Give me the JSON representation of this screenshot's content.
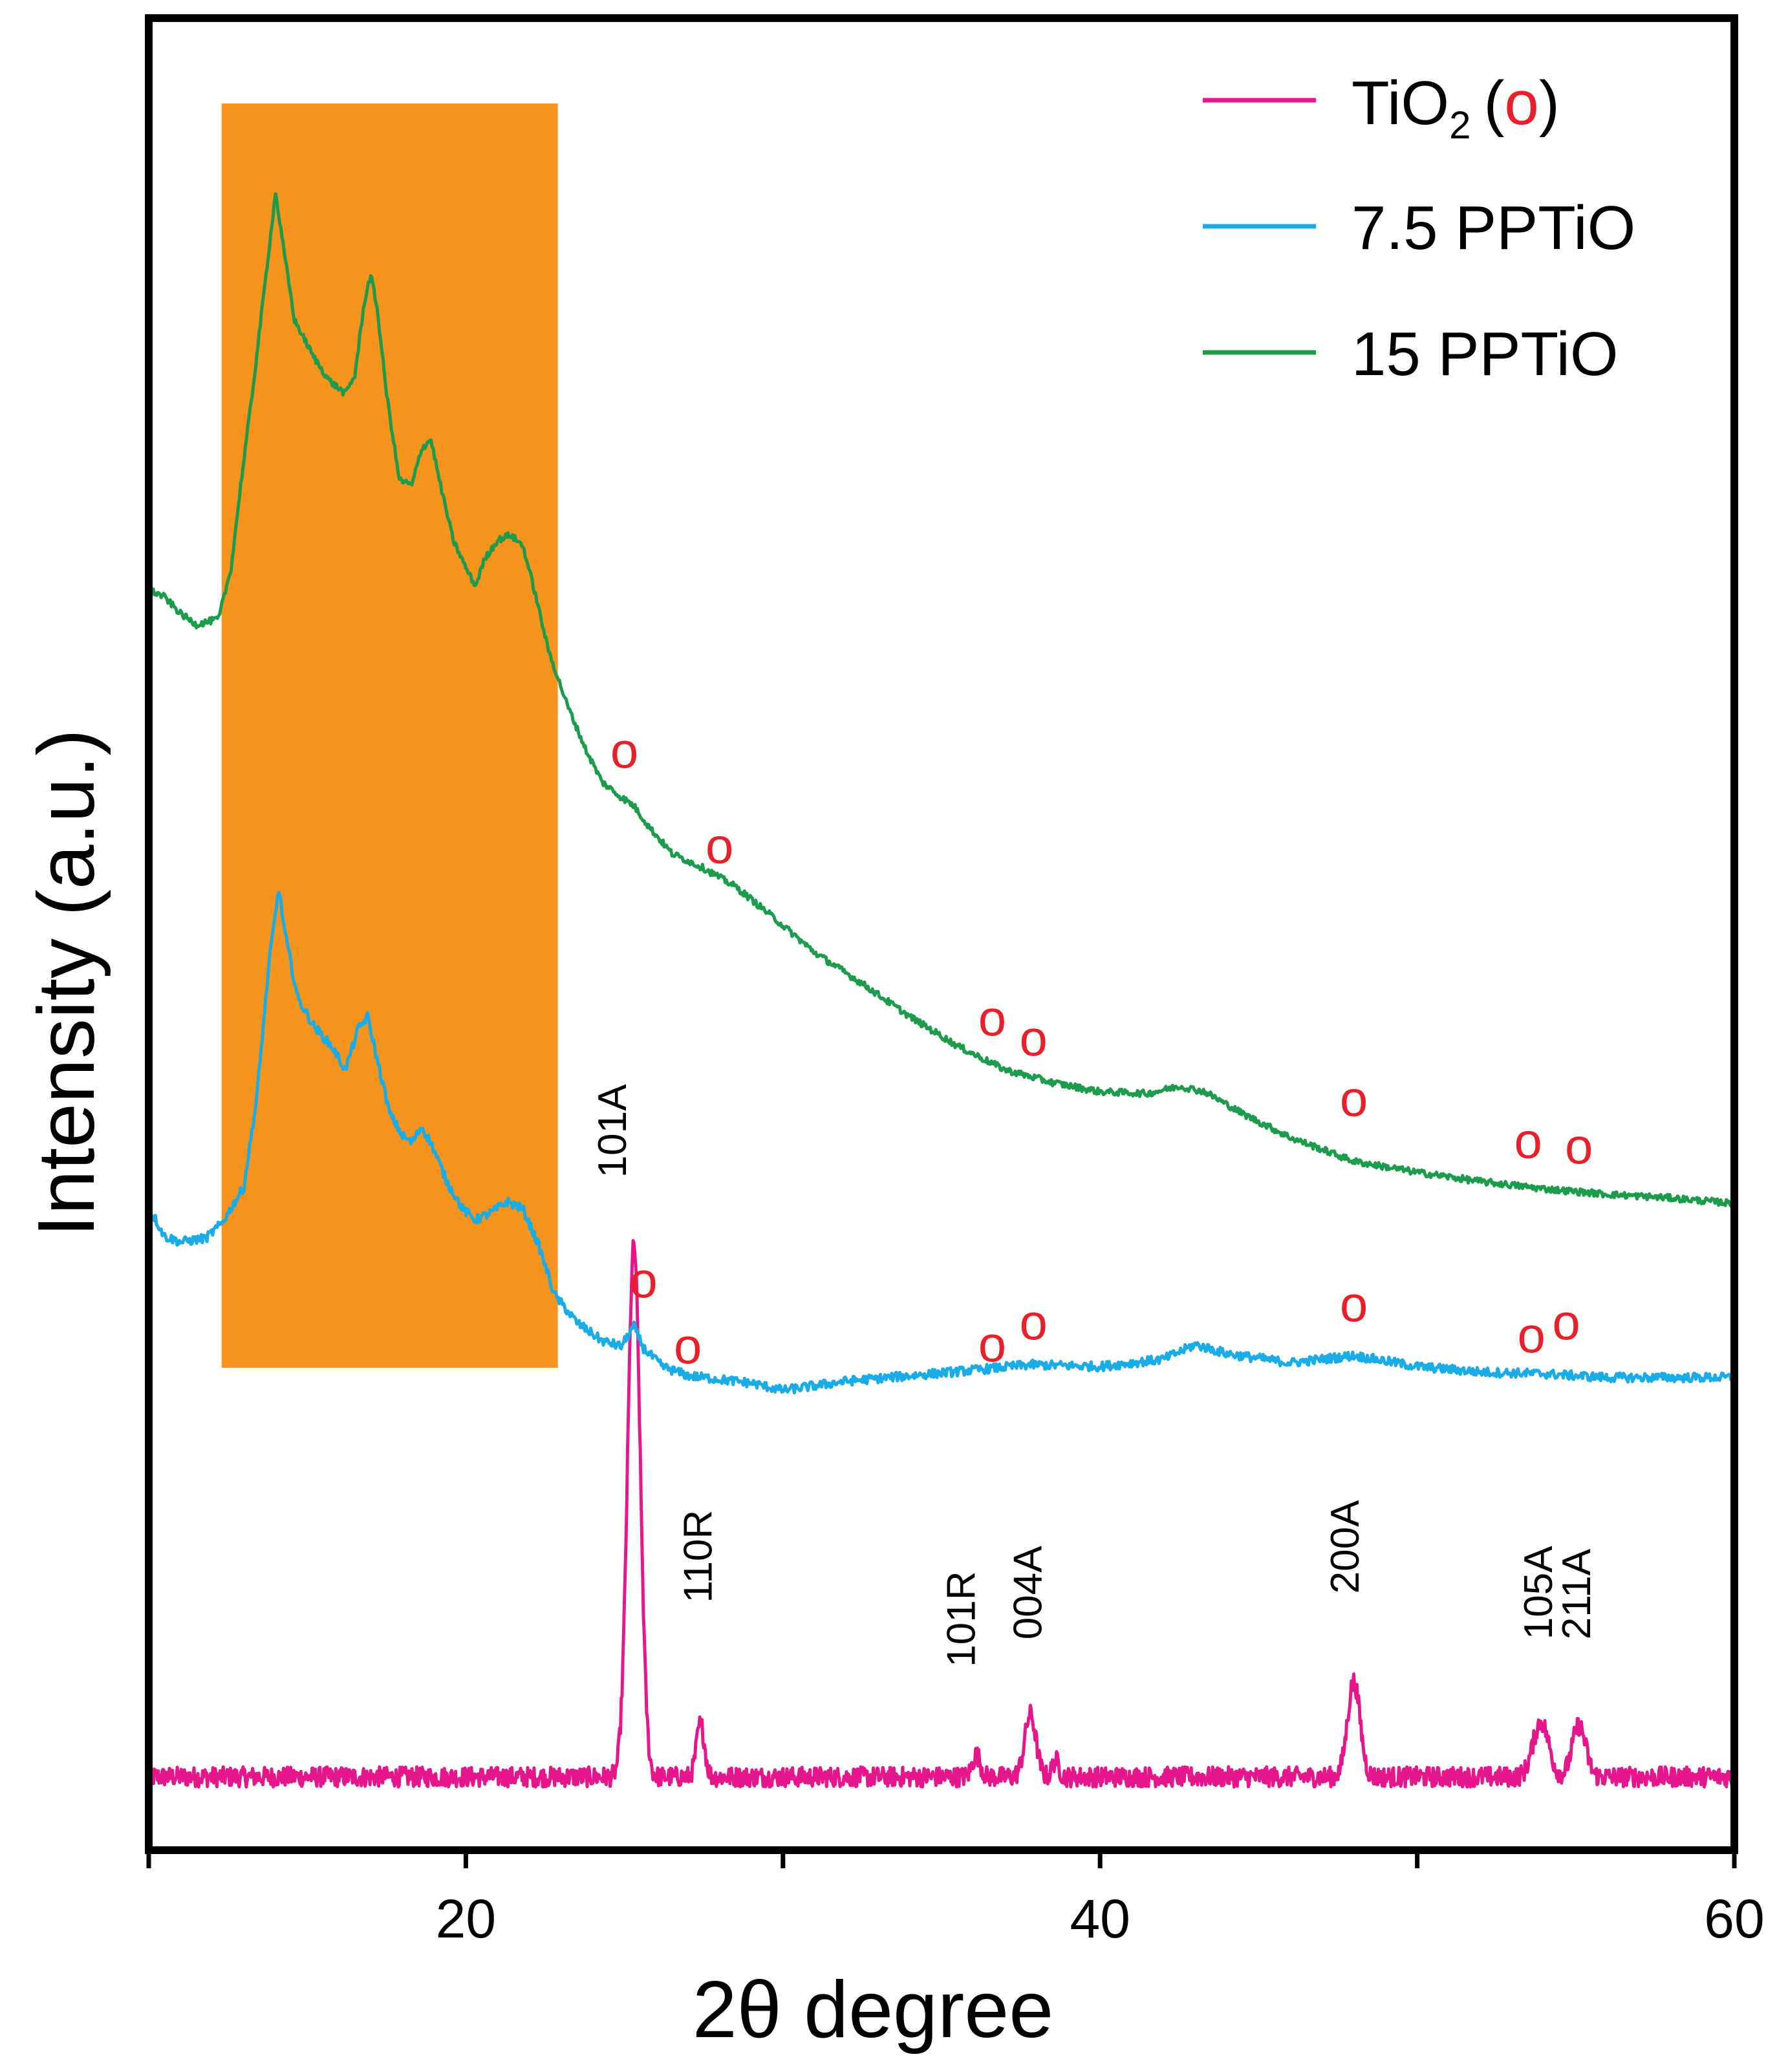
{
  "chart_data": {
    "type": "line",
    "title": "",
    "xlabel": "2θ degree",
    "ylabel": "Intensity (a.u.)",
    "xlim": [
      10,
      60
    ],
    "ylim": [
      0,
      100
    ],
    "x_ticks": [
      20,
      40,
      60
    ],
    "x_minor_ticks": [
      10,
      30,
      50
    ],
    "y_ticks_shown": false,
    "grid": false,
    "legend_position": "top-right",
    "legend": [
      {
        "key": "tio2",
        "prefix": "TiO",
        "sub": "2",
        "marker": "o",
        "open": "(",
        "close": ")"
      },
      {
        "key": "pp75",
        "label": "7.5 PPTiO"
      },
      {
        "key": "pp15",
        "label": "15 PPTiO"
      }
    ],
    "highlight_region": {
      "x_from": 12.3,
      "x_to": 22.9,
      "color": "#F7941D"
    },
    "series": [
      {
        "name": "TiO2",
        "color": "#E6168C",
        "baseline": 4.0,
        "noise": 0.55,
        "peaks": [
          {
            "x": 25.3,
            "h": 29,
            "w": 0.28
          },
          {
            "x": 27.4,
            "h": 2.9,
            "w": 0.18
          },
          {
            "x": 36.1,
            "h": 1.2,
            "w": 0.18
          },
          {
            "x": 37.8,
            "h": 3.4,
            "w": 0.25
          },
          {
            "x": 38.6,
            "h": 0.9,
            "w": 0.15
          },
          {
            "x": 48.0,
            "h": 5.2,
            "w": 0.28
          },
          {
            "x": 53.9,
            "h": 3.0,
            "w": 0.35
          },
          {
            "x": 55.1,
            "h": 2.8,
            "w": 0.3
          }
        ]
      },
      {
        "name": "7.5 PPTiO",
        "color": "#1AACE6",
        "noise": 0.25,
        "points": [
          [
            10.1,
            34.8
          ],
          [
            10.5,
            33.5
          ],
          [
            11.0,
            33.2
          ],
          [
            11.8,
            33.4
          ],
          [
            12.3,
            34.2
          ],
          [
            13.0,
            36.2
          ],
          [
            13.4,
            41.0
          ],
          [
            13.8,
            48.5
          ],
          [
            14.1,
            52.5
          ],
          [
            14.3,
            50.0
          ],
          [
            14.7,
            46.5
          ],
          [
            15.2,
            45.0
          ],
          [
            15.8,
            43.8
          ],
          [
            16.2,
            42.6
          ],
          [
            16.6,
            44.8
          ],
          [
            16.9,
            45.5
          ],
          [
            17.2,
            43.2
          ],
          [
            17.6,
            40.2
          ],
          [
            18.0,
            39.0
          ],
          [
            18.3,
            38.6
          ],
          [
            18.6,
            39.5
          ],
          [
            18.9,
            38.6
          ],
          [
            19.4,
            36.5
          ],
          [
            19.9,
            35.0
          ],
          [
            20.3,
            34.4
          ],
          [
            20.8,
            34.8
          ],
          [
            21.3,
            35.4
          ],
          [
            21.8,
            35.0
          ],
          [
            22.3,
            33.0
          ],
          [
            22.8,
            30.3
          ],
          [
            23.5,
            28.8
          ],
          [
            24.3,
            27.8
          ],
          [
            24.9,
            27.5
          ],
          [
            25.3,
            28.6
          ],
          [
            25.6,
            27.4
          ],
          [
            26.2,
            26.4
          ],
          [
            27.0,
            25.9
          ],
          [
            28.0,
            25.7
          ],
          [
            29.0,
            25.5
          ],
          [
            30.0,
            25.1
          ],
          [
            32.0,
            25.6
          ],
          [
            34.0,
            25.9
          ],
          [
            36.0,
            26.2
          ],
          [
            37.8,
            26.5
          ],
          [
            40.0,
            26.4
          ],
          [
            42.0,
            26.8
          ],
          [
            43.0,
            27.6
          ],
          [
            44.0,
            27.1
          ],
          [
            46.0,
            26.6
          ],
          [
            48.0,
            27.0
          ],
          [
            50.0,
            26.4
          ],
          [
            52.0,
            26.1
          ],
          [
            54.0,
            26.0
          ],
          [
            56.0,
            25.8
          ],
          [
            58.0,
            25.8
          ],
          [
            60.0,
            25.8
          ]
        ]
      },
      {
        "name": "15 PPTiO",
        "color": "#1B9B4B",
        "noise": 0.18,
        "points": [
          [
            10.0,
            68.8
          ],
          [
            10.5,
            68.4
          ],
          [
            11.0,
            67.5
          ],
          [
            11.5,
            66.9
          ],
          [
            12.2,
            67.2
          ],
          [
            12.6,
            70.0
          ],
          [
            12.9,
            74.5
          ],
          [
            13.3,
            80.0
          ],
          [
            13.7,
            86.0
          ],
          [
            14.0,
            90.5
          ],
          [
            14.2,
            88.0
          ],
          [
            14.6,
            83.5
          ],
          [
            15.2,
            81.5
          ],
          [
            15.7,
            80.2
          ],
          [
            16.2,
            79.5
          ],
          [
            16.5,
            80.5
          ],
          [
            16.8,
            84.5
          ],
          [
            17.0,
            86.0
          ],
          [
            17.2,
            84.2
          ],
          [
            17.5,
            79.5
          ],
          [
            17.9,
            74.8
          ],
          [
            18.3,
            74.5
          ],
          [
            18.6,
            76.5
          ],
          [
            18.9,
            77.0
          ],
          [
            19.2,
            74.5
          ],
          [
            19.6,
            71.5
          ],
          [
            20.0,
            70.0
          ],
          [
            20.3,
            69.0
          ],
          [
            20.6,
            70.5
          ],
          [
            21.0,
            71.5
          ],
          [
            21.4,
            71.8
          ],
          [
            21.8,
            71.2
          ],
          [
            22.2,
            68.5
          ],
          [
            22.6,
            65.5
          ],
          [
            23.2,
            62.5
          ],
          [
            23.8,
            60.0
          ],
          [
            24.3,
            58.3
          ],
          [
            24.8,
            57.6
          ],
          [
            25.3,
            57.0
          ],
          [
            25.8,
            55.8
          ],
          [
            26.5,
            54.4
          ],
          [
            27.5,
            53.6
          ],
          [
            28.5,
            52.6
          ],
          [
            29.5,
            51.2
          ],
          [
            31.0,
            49.0
          ],
          [
            32.5,
            47.3
          ],
          [
            34.0,
            45.5
          ],
          [
            35.5,
            43.9
          ],
          [
            37.0,
            42.6
          ],
          [
            38.5,
            41.9
          ],
          [
            40.0,
            41.4
          ],
          [
            41.5,
            41.3
          ],
          [
            42.5,
            41.7
          ],
          [
            43.3,
            41.4
          ],
          [
            44.5,
            40.2
          ],
          [
            46.0,
            38.9
          ],
          [
            48.0,
            37.6
          ],
          [
            50.0,
            37.0
          ],
          [
            52.0,
            36.5
          ],
          [
            54.0,
            36.1
          ],
          [
            56.0,
            35.8
          ],
          [
            58.0,
            35.6
          ],
          [
            60.0,
            35.3
          ]
        ]
      }
    ],
    "peak_labels": [
      {
        "text": "101A",
        "x": 24.6,
        "y": 36.7
      },
      {
        "text": "110R",
        "x": 27.3,
        "y": 13.5
      },
      {
        "text": "101R",
        "x": 35.6,
        "y": 10.0
      },
      {
        "text": "004A",
        "x": 37.7,
        "y": 11.5
      },
      {
        "text": "200A",
        "x": 47.7,
        "y": 14.0
      },
      {
        "text": "105A",
        "x": 53.8,
        "y": 11.5
      },
      {
        "text": "211A",
        "x": 55.0,
        "y": 11.5
      }
    ],
    "markers": [
      {
        "series": "15 PPTiO",
        "text": "o",
        "x": 25.0,
        "y": 60.0
      },
      {
        "series": "15 PPTiO",
        "text": "o",
        "x": 28.0,
        "y": 54.8
      },
      {
        "series": "15 PPTiO",
        "text": "o",
        "x": 36.6,
        "y": 45.4
      },
      {
        "series": "15 PPTiO",
        "text": "o",
        "x": 37.9,
        "y": 44.3
      },
      {
        "series": "15 PPTiO",
        "text": "o",
        "x": 48.0,
        "y": 41.0
      },
      {
        "series": "15 PPTiO",
        "text": "o",
        "x": 53.5,
        "y": 38.7
      },
      {
        "series": "15 PPTiO",
        "text": "o",
        "x": 55.1,
        "y": 38.4
      },
      {
        "series": "7.5 PPTiO",
        "text": "o",
        "x": 25.6,
        "y": 31.1
      },
      {
        "series": "7.5 PPTiO",
        "text": "o",
        "x": 27.0,
        "y": 27.5
      },
      {
        "series": "7.5 PPTiO",
        "text": "o",
        "x": 36.6,
        "y": 27.6
      },
      {
        "series": "7.5 PPTiO",
        "text": "o",
        "x": 37.9,
        "y": 28.8
      },
      {
        "series": "7.5 PPTiO",
        "text": "o",
        "x": 48.0,
        "y": 29.8
      },
      {
        "series": "7.5 PPTiO",
        "text": "o",
        "x": 53.6,
        "y": 28.1
      },
      {
        "series": "7.5 PPTiO",
        "text": "o",
        "x": 54.7,
        "y": 28.8
      }
    ]
  }
}
